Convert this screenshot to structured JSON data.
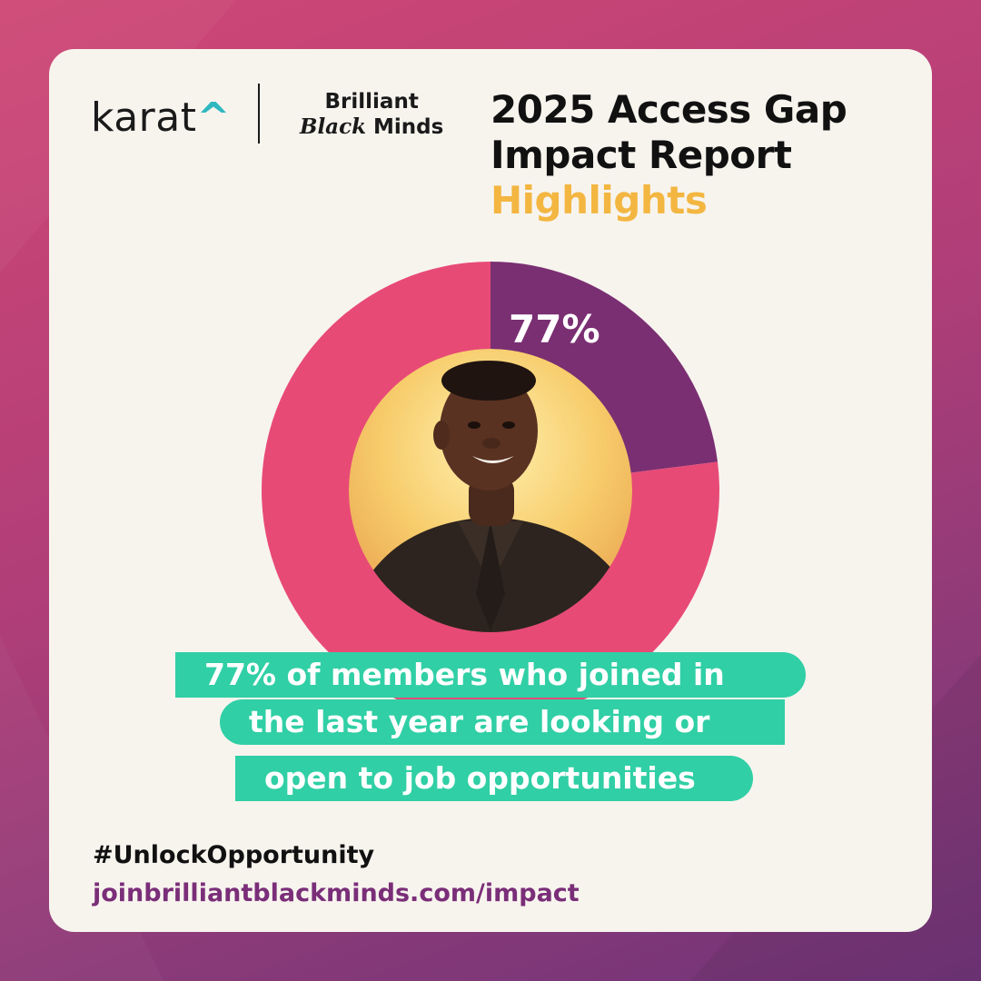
{
  "logos": {
    "karat": {
      "text": "karat",
      "caret": "^"
    },
    "brilliant_black_minds": {
      "line1": "Brilliant",
      "line2_italic": "Black",
      "line2_rest": " Minds"
    }
  },
  "title": {
    "line1": "2025 Access Gap",
    "line2": "Impact Report",
    "line3": "Highlights"
  },
  "chart_data": {
    "type": "pie",
    "slices": [
      {
        "value": 77,
        "color": "#e84a76",
        "label": "77%"
      },
      {
        "value": 23,
        "color": "#7a2f72"
      }
    ],
    "center_image": "portrait of smiling man on yellow background"
  },
  "caption": {
    "line1": "77% of members who joined in",
    "line2": "the last year are looking or",
    "line3": "open to job opportunities"
  },
  "footer": {
    "hashtag": "#UnlockOpportunity",
    "url": "joinbrilliantblackminds.com/impact"
  },
  "colors": {
    "background": "#b13e78",
    "card": "#f7f4ee",
    "accent_yellow": "#f3b641",
    "accent_teal": "#30cfa5",
    "pink": "#e84a76",
    "plum": "#7a2f72"
  }
}
